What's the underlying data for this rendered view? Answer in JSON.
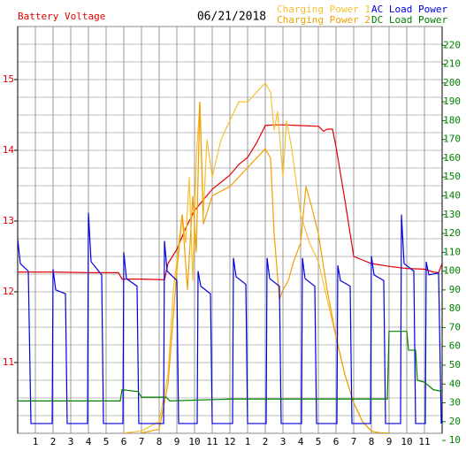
{
  "chart_data": {
    "type": "line",
    "title": "06/21/2018",
    "xlim": [
      0,
      24
    ],
    "xticks": [
      1,
      2,
      3,
      4,
      5,
      6,
      7,
      8,
      9,
      10,
      11,
      12,
      {
        "value": 13,
        "label": "1"
      },
      {
        "value": 14,
        "label": "2"
      },
      {
        "value": 15,
        "label": "3"
      },
      {
        "value": 16,
        "label": "4"
      },
      {
        "value": 17,
        "label": "5"
      },
      {
        "value": 18,
        "label": "6"
      },
      {
        "value": 19,
        "label": "7"
      },
      {
        "value": 20,
        "label": "8"
      },
      {
        "value": 21,
        "label": "9"
      },
      {
        "value": 22,
        "label": "10"
      },
      {
        "value": 23,
        "label": "11"
      }
    ],
    "ylim": [
      10,
      15.75
    ],
    "yticks": [
      11,
      12,
      13,
      14,
      15
    ],
    "y2lim": [
      13.8,
      230
    ],
    "y2ticks": [
      10,
      20,
      30,
      40,
      50,
      60,
      70,
      80,
      90,
      100,
      110,
      120,
      130,
      140,
      150,
      160,
      170,
      180,
      190,
      200,
      210,
      220
    ],
    "grid": true,
    "series": [
      {
        "name": "Battery Voltage",
        "color": "#e00000",
        "x": [
          0,
          2,
          4,
          5.7,
          5.9,
          7,
          8.3,
          8.5,
          9,
          9.5,
          10,
          10.5,
          11,
          11.5,
          12,
          12.5,
          13,
          13.5,
          14,
          14.5,
          15,
          16,
          17,
          17.3,
          17.5,
          17.8,
          18,
          18.5,
          19,
          19.5,
          20,
          21,
          22,
          23,
          23.5,
          23.8,
          24
        ],
        "values": [
          12.28,
          12.28,
          12.27,
          12.27,
          12.18,
          12.18,
          12.17,
          12.4,
          12.6,
          12.9,
          13.15,
          13.3,
          13.45,
          13.55,
          13.65,
          13.8,
          13.9,
          14.1,
          14.35,
          14.36,
          14.36,
          14.35,
          14.34,
          14.27,
          14.3,
          14.3,
          14.05,
          13.3,
          12.5,
          12.45,
          12.4,
          12.36,
          12.33,
          12.32,
          12.28,
          12.27,
          12.4
        ]
      },
      {
        "name": "Charging Power 1",
        "color": "#f8c030",
        "axis": "y2",
        "x": [
          6,
          7,
          8,
          8.5,
          8.8,
          9,
          9.3,
          9.5,
          9.7,
          9.9,
          10.1,
          10.3,
          10.5,
          10.7,
          11,
          11.5,
          12,
          12.5,
          13,
          13.5,
          14,
          14.3,
          14.5,
          14.7,
          15,
          15.2,
          15.5,
          16,
          16.5,
          17,
          17.5,
          18,
          18.5,
          19,
          19.5,
          20,
          20.5,
          21
        ],
        "values": [
          14,
          15,
          20,
          45,
          90,
          105,
          130,
          115,
          150,
          95,
          160,
          190,
          130,
          170,
          150,
          170,
          180,
          190,
          190,
          195,
          200,
          195,
          175,
          185,
          150,
          180,
          165,
          130,
          115,
          105,
          85,
          65,
          45,
          30,
          20,
          15,
          14,
          14
        ]
      },
      {
        "name": "Charging Power 2",
        "color": "#f0a000",
        "axis": "y2",
        "x": [
          7,
          8,
          8.5,
          9,
          9.3,
          9.6,
          9.9,
          10.1,
          10.3,
          10.5,
          11,
          12,
          13,
          13.5,
          14,
          14.3,
          14.5,
          14.8,
          15,
          15.3,
          15.6,
          16,
          16.3,
          16.6,
          17,
          17.5,
          18,
          18.5,
          19,
          19.5,
          20,
          20.5,
          21
        ],
        "values": [
          14,
          16,
          40,
          100,
          130,
          90,
          140,
          110,
          190,
          125,
          140,
          145,
          155,
          160,
          165,
          160,
          120,
          85,
          90,
          95,
          105,
          115,
          145,
          135,
          120,
          90,
          65,
          45,
          30,
          20,
          15,
          14,
          14
        ]
      },
      {
        "name": "AC Load Power",
        "color": "#0000e0",
        "axis": "y2",
        "x": [
          0,
          0.15,
          0.6,
          0.75,
          1.95,
          2,
          2.15,
          2.7,
          2.8,
          3.95,
          4,
          4.15,
          4.75,
          4.85,
          5.95,
          6,
          6.15,
          6.75,
          6.85,
          8.25,
          8.3,
          8.45,
          9,
          9.1,
          10.15,
          10.2,
          10.35,
          10.9,
          11,
          12.15,
          12.2,
          12.35,
          12.9,
          13,
          14.05,
          14.1,
          14.25,
          14.8,
          14.9,
          16.05,
          16.1,
          16.25,
          16.8,
          16.9,
          18.05,
          18.1,
          18.25,
          18.8,
          18.9,
          19.95,
          20,
          20.15,
          20.7,
          20.8,
          21.65,
          21.7,
          21.85,
          22.4,
          22.5,
          23.05,
          23.1,
          23.25,
          23.8,
          23.95
        ],
        "values": [
          117,
          104,
          100,
          19,
          19,
          101,
          90,
          88,
          19,
          19,
          131,
          105,
          98,
          19,
          19,
          110,
          96,
          92,
          19,
          19,
          116,
          100,
          95,
          19,
          19,
          100,
          92,
          88,
          19,
          19,
          107,
          97,
          93,
          19,
          19,
          107,
          96,
          92,
          19,
          19,
          107,
          96,
          92,
          19,
          19,
          103,
          95,
          92,
          19,
          19,
          108,
          98,
          95,
          19,
          19,
          130,
          104,
          100,
          19,
          19,
          105,
          98,
          99,
          19
        ]
      },
      {
        "name": "DC Load Power",
        "color": "#008000",
        "axis": "y2",
        "x": [
          0,
          5.8,
          5.9,
          6.8,
          7,
          8.4,
          8.6,
          12,
          16,
          20,
          20.9,
          21,
          22,
          22.1,
          22.5,
          22.6,
          23,
          23.5,
          24
        ],
        "values": [
          31,
          31,
          37,
          36,
          33,
          33,
          31,
          32,
          32,
          32,
          32,
          68,
          68,
          58,
          58,
          42,
          41,
          37,
          36
        ]
      }
    ]
  }
}
